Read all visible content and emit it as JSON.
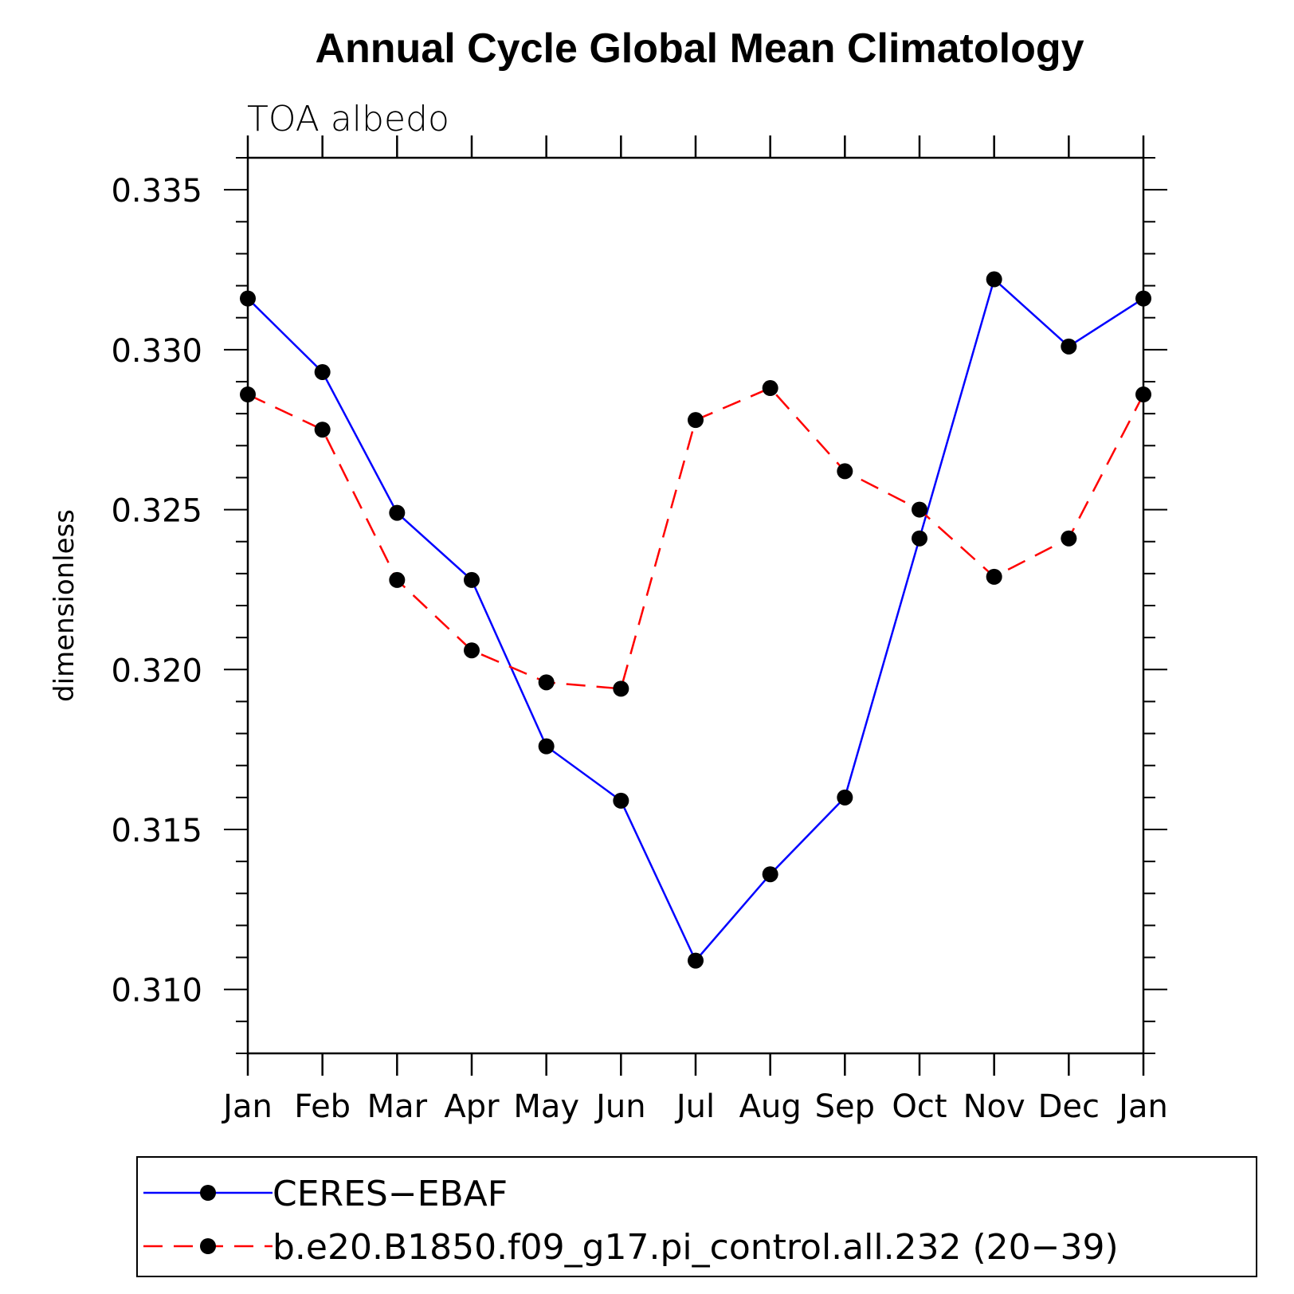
{
  "chart_data": {
    "type": "line",
    "title": "Annual Cycle Global Mean Climatology",
    "subtitle": "TOA  albedo",
    "xlabel": "",
    "ylabel": "dimensionless",
    "categories": [
      "Jan",
      "Feb",
      "Mar",
      "Apr",
      "May",
      "Jun",
      "Jul",
      "Aug",
      "Sep",
      "Oct",
      "Nov",
      "Dec",
      "Jan"
    ],
    "ylim": [
      0.308,
      0.336
    ],
    "yticks": [
      0.31,
      0.315,
      0.32,
      0.325,
      0.33,
      0.335
    ],
    "ytick_labels": [
      "0.310",
      "0.315",
      "0.320",
      "0.325",
      "0.330",
      "0.335"
    ],
    "grid": false,
    "legend_position": "bottom",
    "series": [
      {
        "name": "CERES−EBAF",
        "color": "#0000ff",
        "line_style": "solid",
        "marker": "filled-circle",
        "values": [
          0.3316,
          0.3293,
          0.3249,
          0.3228,
          0.3176,
          0.3159,
          0.3109,
          0.3136,
          0.316,
          0.3241,
          0.3322,
          0.3301,
          0.3316
        ]
      },
      {
        "name": "b.e20.B1850.f09_g17.pi_control.all.232 (20−39)",
        "color": "#ff0000",
        "line_style": "dashed",
        "marker": "filled-circle",
        "values": [
          0.3286,
          0.3275,
          0.3228,
          0.3206,
          0.3196,
          0.3194,
          0.3278,
          0.3288,
          0.3262,
          0.325,
          0.3229,
          0.3241,
          0.3286
        ]
      }
    ]
  }
}
